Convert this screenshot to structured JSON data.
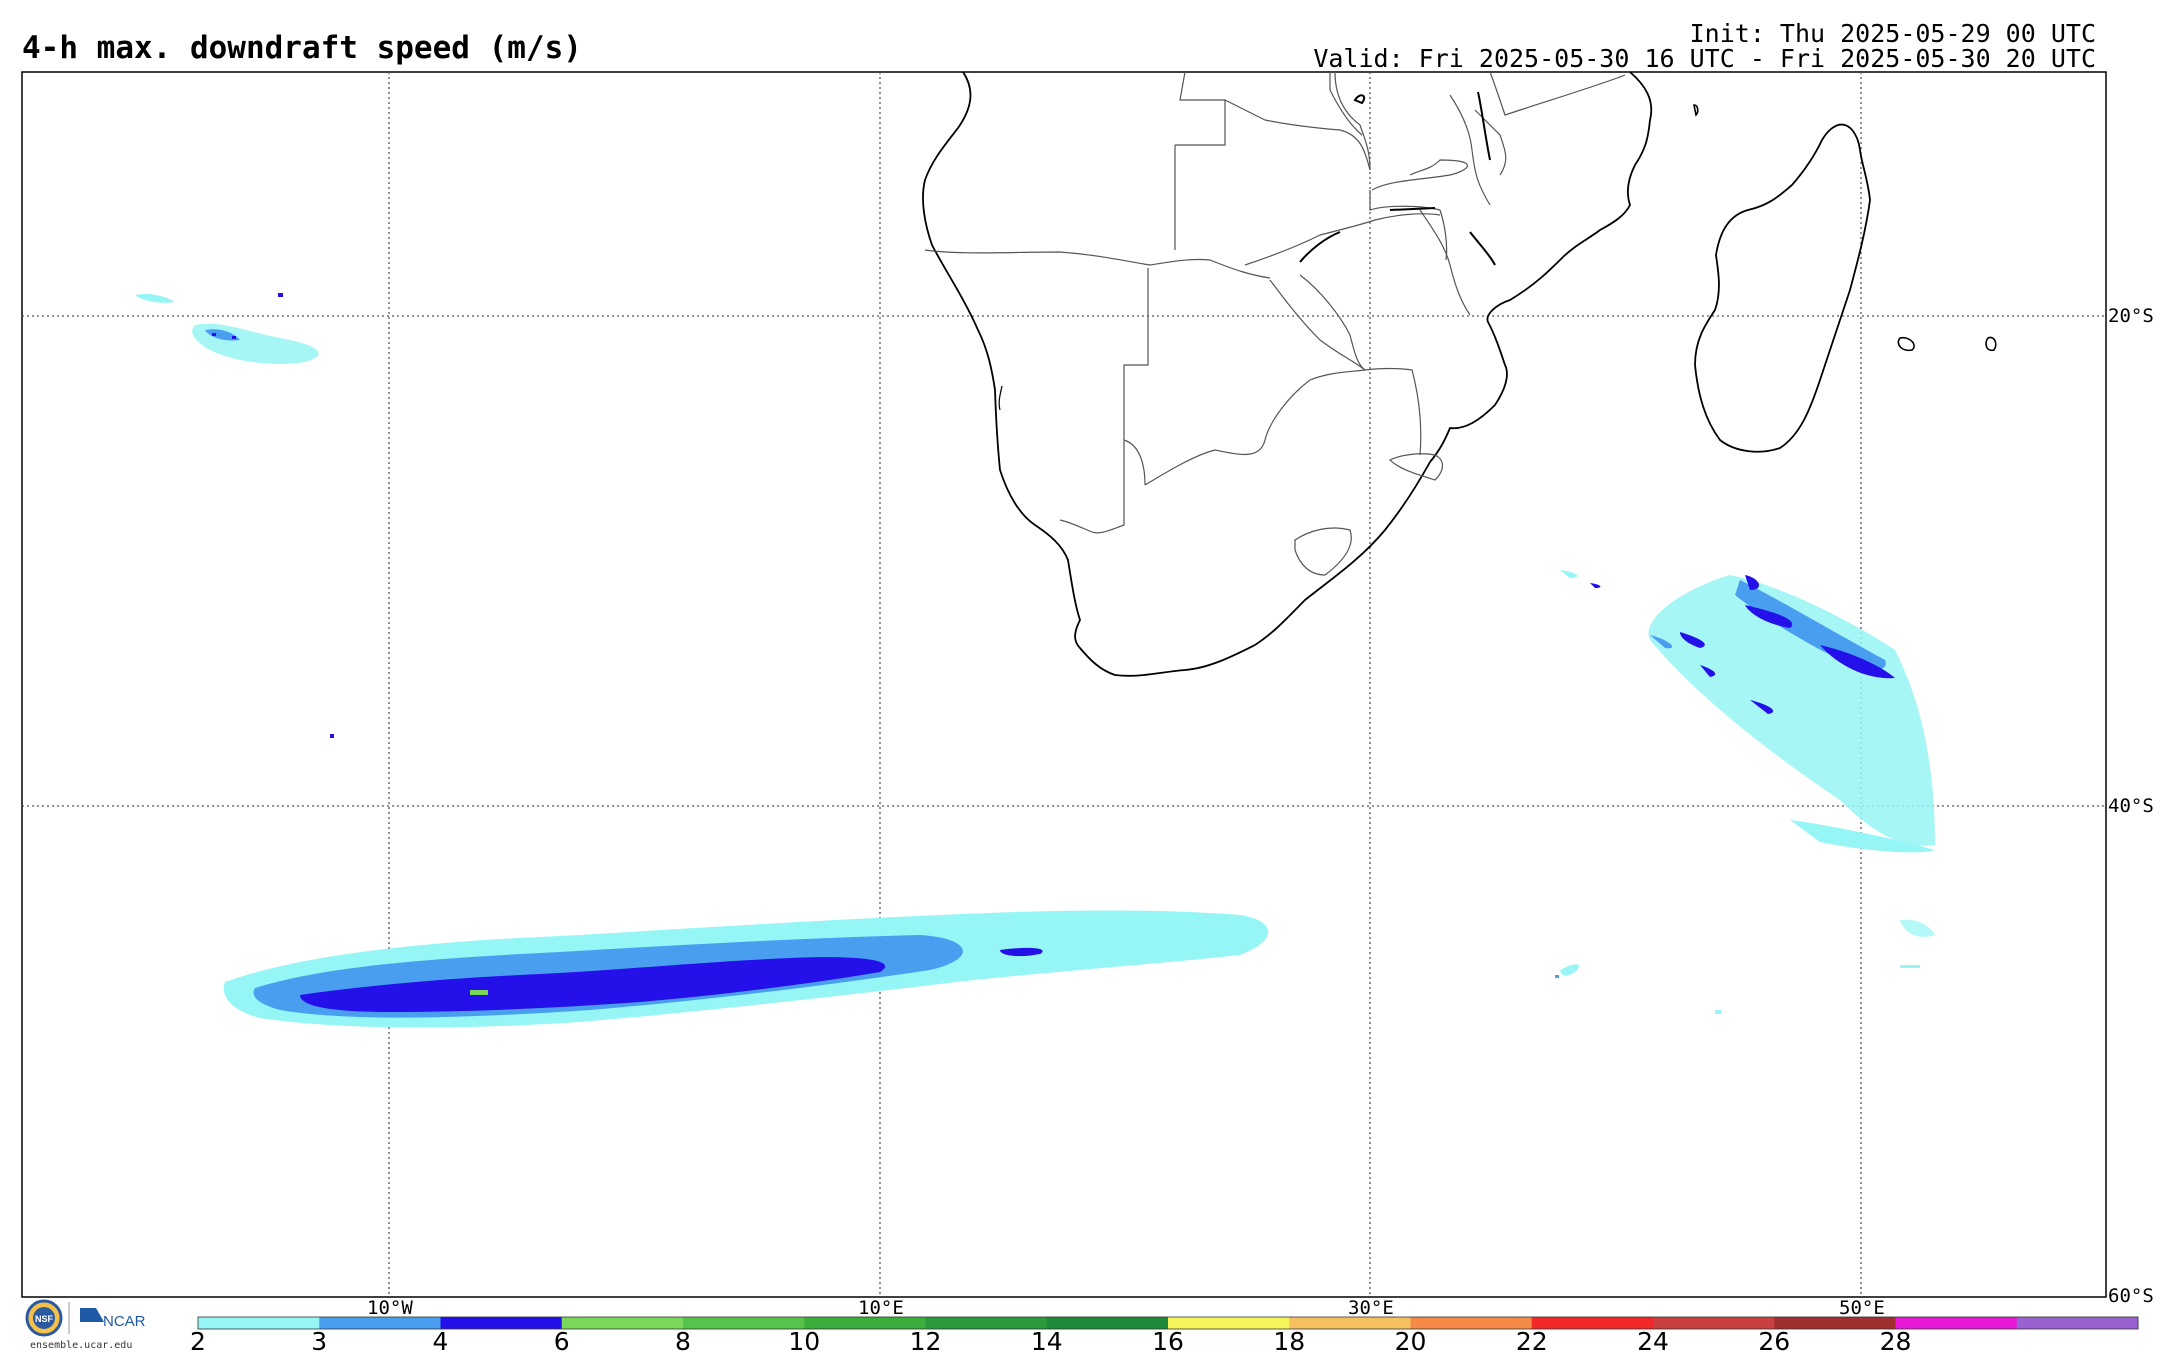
{
  "header": {
    "title": "4-h max. downdraft speed (m/s)",
    "init": "Init: Thu 2025-05-29 00 UTC",
    "valid": "Valid: Fri 2025-05-30 16 UTC - Fri 2025-05-30 20 UTC"
  },
  "grid": {
    "lon_labels": [
      "10°W",
      "10°E",
      "30°E",
      "50°E"
    ],
    "lat_labels": [
      "20°S",
      "40°S",
      "60°S"
    ]
  },
  "colorbar": {
    "ticks": [
      "2",
      "3",
      "4",
      "6",
      "8",
      "10",
      "12",
      "14",
      "16",
      "18",
      "20",
      "22",
      "24",
      "26",
      "28"
    ],
    "colors": [
      "#96f5f5",
      "#4a9ef0",
      "#2410e8",
      "#7ad85a",
      "#56c44a",
      "#3cae3c",
      "#2a9a3c",
      "#1e8a3a",
      "#f5f55a",
      "#f5c060",
      "#f58a48",
      "#f02828",
      "#c84040",
      "#a03030",
      "#e81ad8",
      "#9a62d0"
    ]
  },
  "map_colors": {
    "cyan": "#96f5f5",
    "medium_blue": "#4a9ef0",
    "dark_blue": "#2410e8",
    "green": "#7ad85a"
  },
  "footer": {
    "nsf": "NSF",
    "ncar": "NCAR",
    "site": "ensemble.ucar.edu"
  }
}
